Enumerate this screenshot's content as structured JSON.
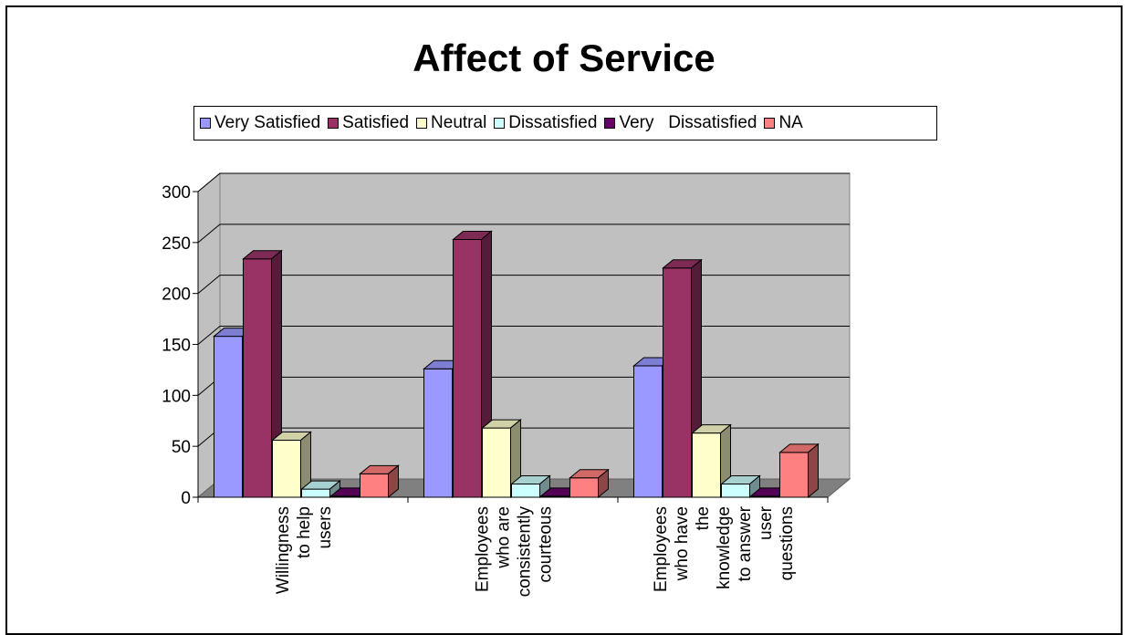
{
  "chart_data": {
    "type": "bar",
    "title": "Affect of Service",
    "categories": [
      [
        "Willingness",
        "to help",
        "users"
      ],
      [
        "Employees",
        "who are",
        "consistently",
        "courteous"
      ],
      [
        "Employees",
        "who have",
        "the",
        "knowledge",
        "to answer",
        "user",
        "questions"
      ]
    ],
    "series": [
      {
        "name": "Very Satisfied",
        "color": "#9999ff",
        "values": [
          158,
          126,
          129
        ]
      },
      {
        "name": "Satisfied",
        "color": "#993366",
        "values": [
          234,
          253,
          225
        ]
      },
      {
        "name": "Neutral",
        "color": "#ffffcc",
        "values": [
          56,
          68,
          63
        ]
      },
      {
        "name": "Dissatisfied",
        "color": "#ccffff",
        "values": [
          8,
          13,
          13
        ]
      },
      {
        "name": "Very   Dissatisfied",
        "color": "#660066",
        "values": [
          1,
          1,
          1
        ]
      },
      {
        "name": "NA",
        "color": "#ff8080",
        "values": [
          23,
          19,
          44
        ]
      }
    ],
    "yticks": [
      0,
      50,
      100,
      150,
      200,
      250,
      300
    ],
    "ylim": [
      0,
      300
    ],
    "grid": true,
    "legend_position": "top"
  }
}
